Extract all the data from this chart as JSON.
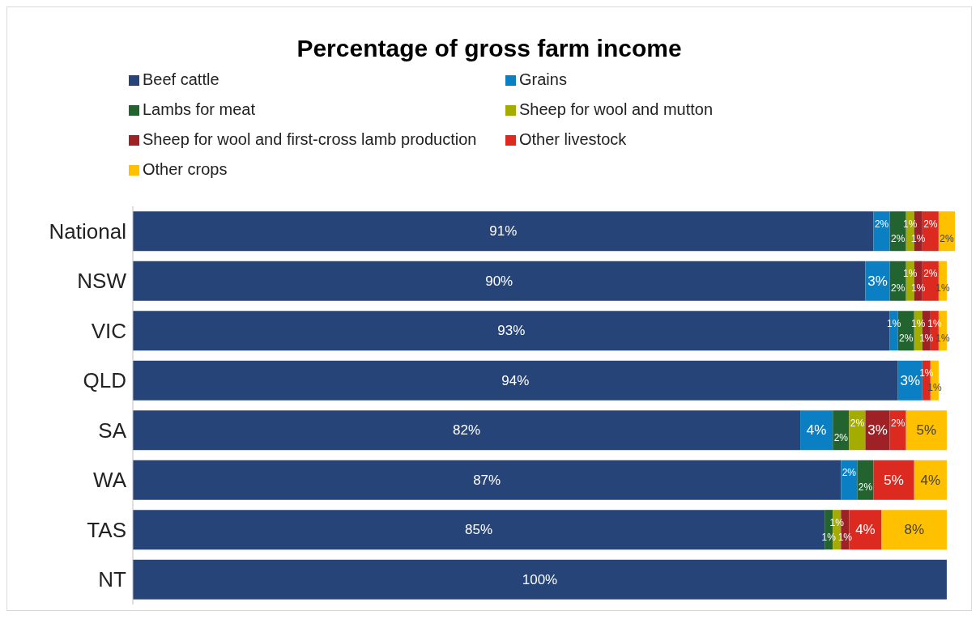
{
  "chart_data": {
    "type": "bar",
    "orientation": "horizontal",
    "stacked": true,
    "title": "Percentage of gross farm income",
    "categories": [
      "National",
      "NSW",
      "VIC",
      "QLD",
      "SA",
      "WA",
      "TAS",
      "NT"
    ],
    "series": [
      {
        "name": "Beef cattle",
        "color": "#264478",
        "values": [
          91,
          90,
          93,
          94,
          82,
          87,
          85,
          100
        ],
        "value_labels": [
          "91%",
          "90%",
          "93%",
          "94%",
          "82%",
          "87%",
          "85%",
          "100%"
        ]
      },
      {
        "name": "Grains",
        "color": "#0a7fc4",
        "values": [
          2,
          3,
          1,
          3,
          4,
          2,
          null,
          null
        ],
        "value_labels": [
          "2%",
          "3%",
          "1%",
          "3%",
          "4%",
          "2%",
          null,
          null
        ]
      },
      {
        "name": "Lambs for meat",
        "color": "#236330",
        "values": [
          2,
          2,
          2,
          null,
          2,
          2,
          1,
          null
        ],
        "value_labels": [
          "2%",
          "2%",
          "2%",
          null,
          "2%",
          "2%",
          "1%",
          null
        ]
      },
      {
        "name": "Sheep for wool and mutton",
        "color": "#a5ac00",
        "values": [
          1,
          1,
          1,
          null,
          2,
          null,
          1,
          null
        ],
        "value_labels": [
          "1%",
          "1%",
          "1%",
          null,
          "2%",
          null,
          "1%",
          null
        ]
      },
      {
        "name": "Sheep for wool and first-cross lamb production",
        "color": "#9e2126",
        "values": [
          1,
          1,
          1,
          null,
          3,
          null,
          1,
          null
        ],
        "value_labels": [
          "1%",
          "1%",
          "1%",
          null,
          "3%",
          null,
          "1%",
          null
        ]
      },
      {
        "name": "Other livestock",
        "color": "#dc2a20",
        "values": [
          2,
          2,
          1,
          1,
          2,
          5,
          4,
          null
        ],
        "value_labels": [
          "2%",
          "2%",
          "1%",
          "1%",
          "2%",
          "5%",
          "4%",
          null
        ]
      },
      {
        "name": "Other crops",
        "color": "#ffc000",
        "values": [
          2,
          1,
          1,
          1,
          5,
          4,
          8,
          null
        ],
        "value_labels": [
          "2%",
          "1%",
          "1%",
          "1%",
          "5%",
          "4%",
          "8%",
          null
        ]
      }
    ],
    "legend": "top",
    "tick_labels": "y"
  }
}
